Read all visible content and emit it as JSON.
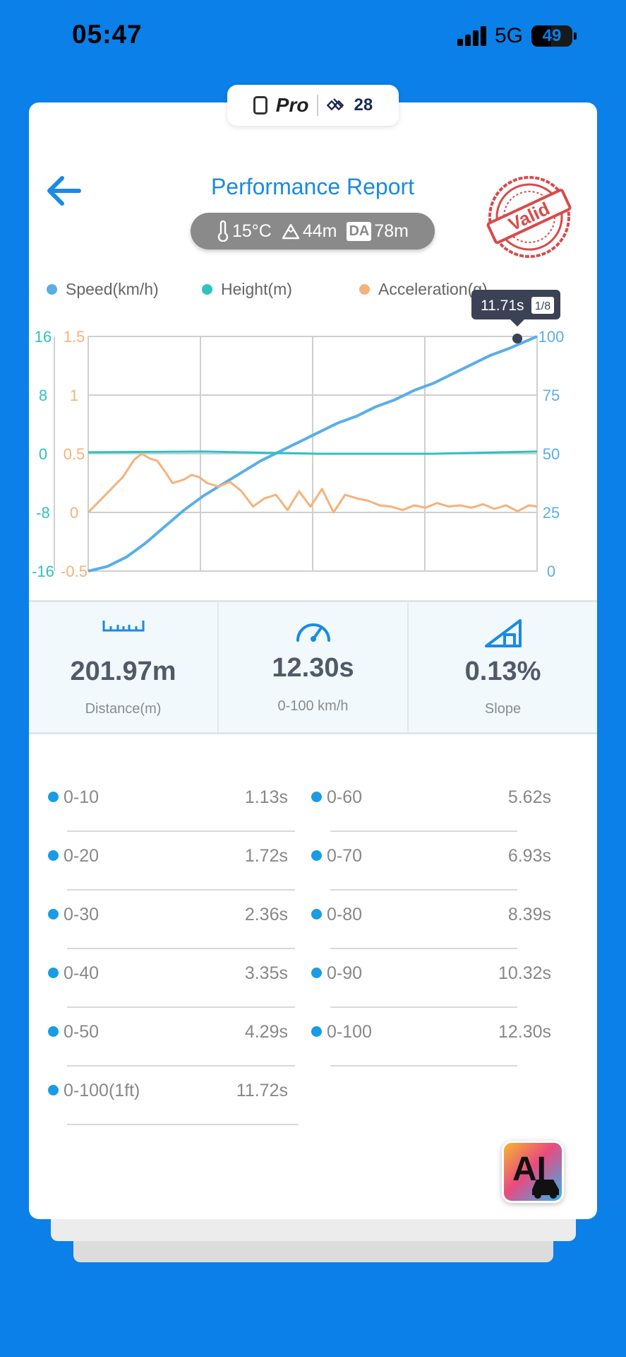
{
  "status_bar": {
    "time": "05:47",
    "network": "5G",
    "battery": "49"
  },
  "device_pill": {
    "mode": "Pro",
    "satellites": "28"
  },
  "header": {
    "title": "Performance Report",
    "temperature": "15°C",
    "altitude": "44m",
    "density_altitude_label": "DA",
    "density_altitude": "78m",
    "stamp_text": "Valid"
  },
  "legend": {
    "speed": "Speed(km/h)",
    "height": "Height(m)",
    "acceleration": "Acceleration(g)"
  },
  "colors": {
    "speed": "#5aaee8",
    "height": "#2ec2c2",
    "acceleration": "#f5b27a",
    "accent": "#1a8ae6"
  },
  "tooltip": {
    "time": "11.71s",
    "page": "1/8"
  },
  "chart_data": {
    "type": "line",
    "x_range": [
      0,
      11.71
    ],
    "left_axis_height": {
      "ticks": [
        "16",
        "8",
        "0",
        "-8",
        "-16"
      ],
      "ylim": [
        -16,
        16
      ]
    },
    "left_axis_acceleration": {
      "ticks": [
        "1.5",
        "1",
        "0.5",
        "0",
        "-0.5"
      ],
      "ylim": [
        -0.5,
        1.5
      ]
    },
    "right_axis_speed": {
      "ticks": [
        "100",
        "75",
        "50",
        "25",
        "0"
      ],
      "ylim": [
        0,
        100
      ]
    },
    "grid": true,
    "series": [
      {
        "name": "Speed(km/h)",
        "axis": "right",
        "x": [
          0,
          0.5,
          1,
          1.5,
          2,
          2.5,
          3,
          3.5,
          4,
          4.5,
          5,
          5.5,
          6,
          6.5,
          7,
          7.5,
          8,
          8.5,
          9,
          9.5,
          10,
          10.5,
          11,
          11.71
        ],
        "values": [
          0,
          2,
          6,
          12,
          19,
          26,
          32,
          37,
          42,
          47,
          51,
          55,
          59,
          63,
          66,
          70,
          73,
          77,
          80,
          84,
          88,
          92,
          95,
          100
        ]
      },
      {
        "name": "Height(m)",
        "axis": "left_height",
        "x": [
          0,
          3,
          6,
          9,
          11.71
        ],
        "values": [
          0.2,
          0.3,
          0.0,
          0.0,
          0.3
        ]
      },
      {
        "name": "Acceleration(g)",
        "axis": "left_acceleration",
        "x": [
          0,
          0.3,
          0.6,
          0.9,
          1.2,
          1.4,
          1.6,
          1.8,
          2.0,
          2.2,
          2.5,
          2.7,
          2.9,
          3.1,
          3.4,
          3.7,
          4.0,
          4.3,
          4.6,
          4.9,
          5.2,
          5.5,
          5.8,
          6.1,
          6.4,
          6.7,
          7.0,
          7.3,
          7.6,
          7.9,
          8.2,
          8.5,
          8.8,
          9.1,
          9.4,
          9.7,
          10.0,
          10.3,
          10.6,
          10.9,
          11.2,
          11.5,
          11.71
        ],
        "values": [
          0,
          0.1,
          0.2,
          0.3,
          0.45,
          0.5,
          0.46,
          0.44,
          0.35,
          0.25,
          0.28,
          0.32,
          0.3,
          0.25,
          0.22,
          0.26,
          0.18,
          0.05,
          0.12,
          0.15,
          0.02,
          0.18,
          0.05,
          0.2,
          0.0,
          0.15,
          0.12,
          0.1,
          0.06,
          0.05,
          0.02,
          0.06,
          0.04,
          0.08,
          0.05,
          0.06,
          0.04,
          0.07,
          0.03,
          0.06,
          0.01,
          0.06,
          0.05
        ]
      }
    ]
  },
  "stats": [
    {
      "value": "201.97m",
      "label": "Distance(m)"
    },
    {
      "value": "12.30s",
      "label": "0-100 km/h"
    },
    {
      "value": "0.13%",
      "label": "Slope"
    }
  ],
  "splits_left": [
    {
      "label": "0-10",
      "value": "1.13s"
    },
    {
      "label": "0-20",
      "value": "1.72s"
    },
    {
      "label": "0-30",
      "value": "2.36s"
    },
    {
      "label": "0-40",
      "value": "3.35s"
    },
    {
      "label": "0-50",
      "value": "4.29s"
    },
    {
      "label": "0-100(1ft)",
      "value": "11.72s"
    }
  ],
  "splits_right": [
    {
      "label": "0-60",
      "value": "5.62s"
    },
    {
      "label": "0-70",
      "value": "6.93s"
    },
    {
      "label": "0-80",
      "value": "8.39s"
    },
    {
      "label": "0-90",
      "value": "10.32s"
    },
    {
      "label": "0-100",
      "value": "12.30s"
    }
  ],
  "ai_button": {
    "label": "AI"
  }
}
